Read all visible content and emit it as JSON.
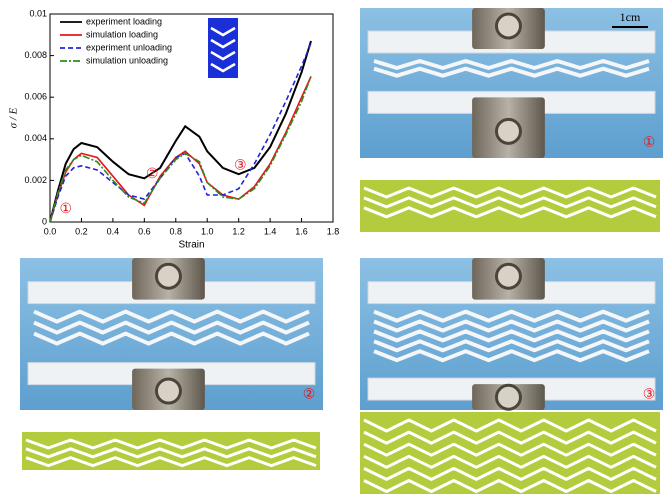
{
  "chart_data": {
    "type": "line",
    "x_label": "Strain",
    "y_label": "σ / E",
    "x": [
      0,
      0.05,
      0.1,
      0.15,
      0.2,
      0.3,
      0.4,
      0.5,
      0.6,
      0.7,
      0.8,
      0.86,
      0.95,
      1.0,
      1.1,
      1.2,
      1.3,
      1.4,
      1.5,
      1.6,
      1.66
    ],
    "series": [
      {
        "name": "experiment loading",
        "color": "#000000",
        "dash": "solid",
        "values": [
          0,
          0.0015,
          0.0028,
          0.0035,
          0.0038,
          0.0036,
          0.0029,
          0.0023,
          0.0021,
          0.0026,
          0.0039,
          0.0046,
          0.0041,
          0.0034,
          0.0026,
          0.0023,
          0.0026,
          0.0036,
          0.0052,
          0.0072,
          0.0087
        ]
      },
      {
        "name": "simulation loading",
        "color": "#e8141c",
        "dash": "solid",
        "values": [
          0,
          0.0013,
          0.0024,
          0.003,
          0.0033,
          0.0031,
          0.0022,
          0.0013,
          0.0008,
          0.0022,
          0.0031,
          0.0034,
          0.0028,
          0.0019,
          0.0013,
          0.0011,
          0.0017,
          0.0028,
          0.0043,
          0.006,
          0.007
        ]
      },
      {
        "name": "experiment unloading",
        "color": "#1f24d6",
        "dash": "dashed",
        "values": [
          0,
          0.0012,
          0.0022,
          0.0026,
          0.0027,
          0.0025,
          0.0019,
          0.0013,
          0.0011,
          0.0021,
          0.0031,
          0.0033,
          0.0022,
          0.0013,
          0.0013,
          0.0016,
          0.0028,
          0.0042,
          0.0058,
          0.0075,
          0.0086
        ]
      },
      {
        "name": "simulation unloading",
        "color": "#2e8b1e",
        "dash": "dashdot",
        "values": [
          0,
          0.0014,
          0.0025,
          0.003,
          0.0032,
          0.0029,
          0.002,
          0.0012,
          0.0009,
          0.0021,
          0.003,
          0.0033,
          0.0029,
          0.0019,
          0.0012,
          0.0011,
          0.0016,
          0.0027,
          0.0042,
          0.0058,
          0.007
        ]
      }
    ],
    "xlim": [
      0,
      1.8
    ],
    "xticks": [
      {
        "value": 0,
        "label": "0.0"
      },
      0.2,
      0.4,
      0.6,
      0.8,
      {
        "value": 1,
        "label": "1.0"
      },
      1.2,
      1.4,
      1.6,
      1.8
    ],
    "ylim": [
      0,
      0.01
    ],
    "yticks": [
      0,
      0.002,
      0.004,
      0.006,
      0.008,
      0.01
    ],
    "legend": "upper left",
    "annotations": [
      "①",
      "②",
      "③"
    ]
  },
  "photos": {
    "scale_bar": "1cm",
    "labels": [
      "①",
      "②",
      "③"
    ]
  }
}
